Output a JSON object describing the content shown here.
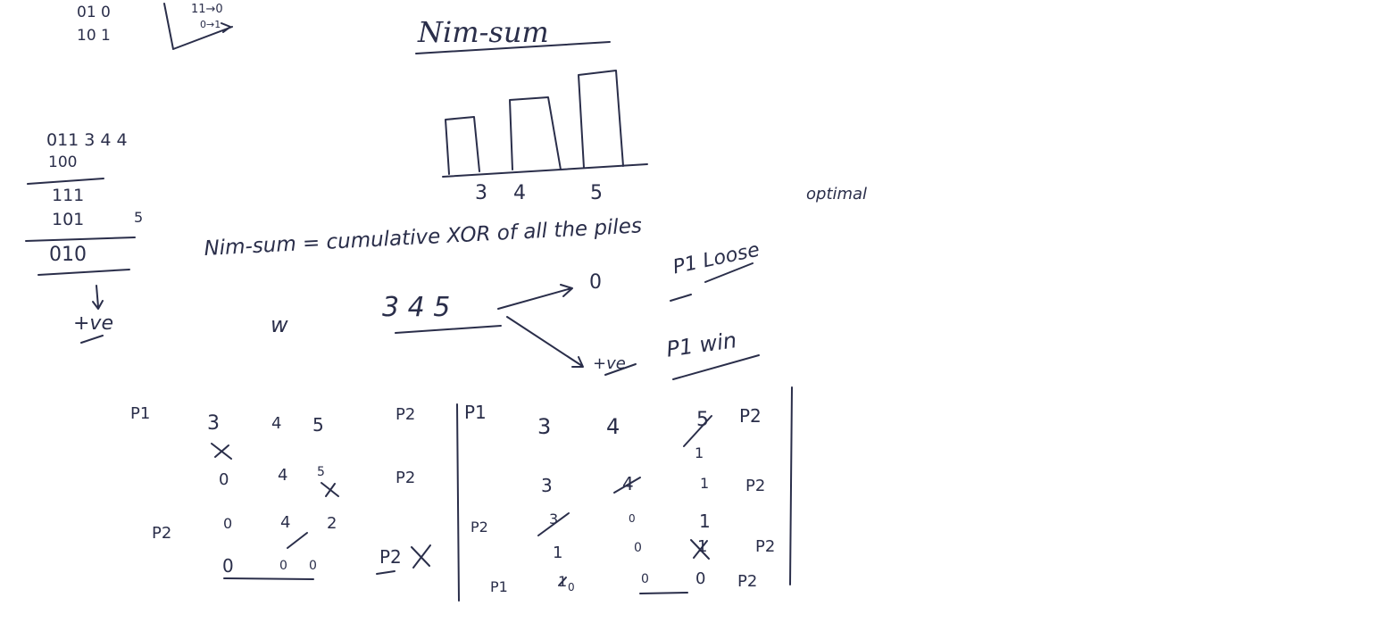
{
  "top_left": {
    "row1": "01   0",
    "row2": "10   1",
    "note": "11→0",
    "note2": "0→1"
  },
  "title": "Nim-sum",
  "bars": {
    "labels": [
      "3",
      "4",
      "5"
    ]
  },
  "optimal": "optimal",
  "xor_calc": {
    "row1": "011  3 4 4",
    "row2": "100",
    "row3": "111",
    "row4": "101",
    "row4_side": "5",
    "result": "010",
    "conclusion": "+ve"
  },
  "definition": "Nim-sum = cumulative XOR of all the piles",
  "branches": {
    "piles": "3 4 5",
    "w": "w",
    "zero": "0",
    "zero_outcome": "P1 Loose",
    "positive": "+ve",
    "positive_outcome": "P1 win"
  },
  "left_table": {
    "p1": "P1",
    "p2a": "P2",
    "p2b": "P2",
    "p2c": "P2",
    "r1": [
      "3",
      "4",
      "5"
    ],
    "r2": [
      "0",
      "4",
      "5"
    ],
    "r3": [
      "0",
      "4",
      "2"
    ],
    "r4": [
      "0",
      "0",
      "0"
    ],
    "row3_player": "P2"
  },
  "right_table": {
    "p1": "P1",
    "p2a": "P2",
    "p2b": "P2",
    "p2c": "P2",
    "p2d": "P2",
    "r1": [
      "3",
      "4",
      "5"
    ],
    "r1b": "1",
    "r2": [
      "3",
      "4",
      "1"
    ],
    "r3": [
      "3",
      "0",
      "1"
    ],
    "r3_player": "P2",
    "r4": [
      "1",
      "0",
      "1"
    ],
    "r5": [
      "1",
      "0",
      "0",
      "0"
    ],
    "r5_player": "P1"
  }
}
